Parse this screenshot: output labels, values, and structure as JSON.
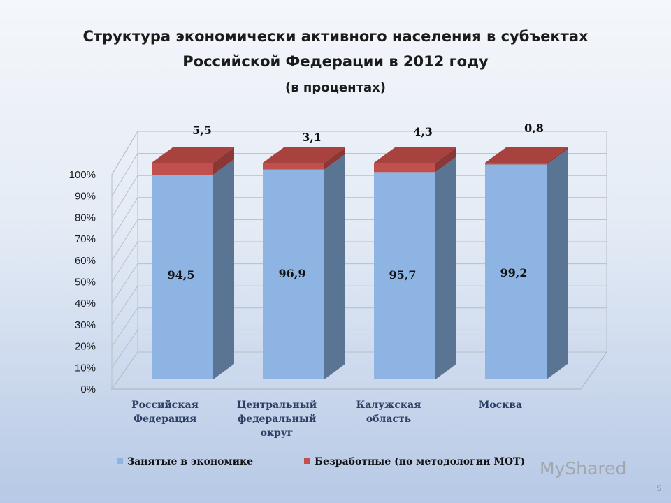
{
  "title_line1": "Структура экономически активного населения в субъектах",
  "title_line2": "Российской Федерации в 2012 году",
  "subtitle": "(в процентах)",
  "slide_number": "5",
  "watermark": "MyShared",
  "colors": {
    "employed_front": "#8db4e2",
    "employed_side": "#5a7494",
    "unemployed_front": "#c0504d",
    "unemployed_side": "#8b3735",
    "unemployed_top": "#a8423f"
  },
  "chart_data": {
    "type": "bar",
    "stacked": "percent",
    "three_d": true,
    "categories": [
      [
        "Российская",
        "Федерация"
      ],
      [
        "Центральный",
        "федеральный",
        "округ"
      ],
      [
        "Калужская",
        "область"
      ],
      [
        "Москва"
      ]
    ],
    "series": [
      {
        "name": "Занятые в экономике",
        "values": [
          94.5,
          96.9,
          95.7,
          99.2
        ],
        "labels": [
          "94,5",
          "96,9",
          "95,7",
          "99,2"
        ]
      },
      {
        "name": "Безработные (по методологии МОТ)",
        "values": [
          5.5,
          3.1,
          4.3,
          0.8
        ],
        "labels": [
          "5,5",
          "3,1",
          "4,3",
          "0,8"
        ]
      }
    ],
    "ylim": [
      0,
      100
    ],
    "yticks": [
      "0%",
      "10%",
      "20%",
      "30%",
      "40%",
      "50%",
      "60%",
      "70%",
      "80%",
      "90%",
      "100%"
    ],
    "grid": true,
    "legend": "bottom"
  }
}
